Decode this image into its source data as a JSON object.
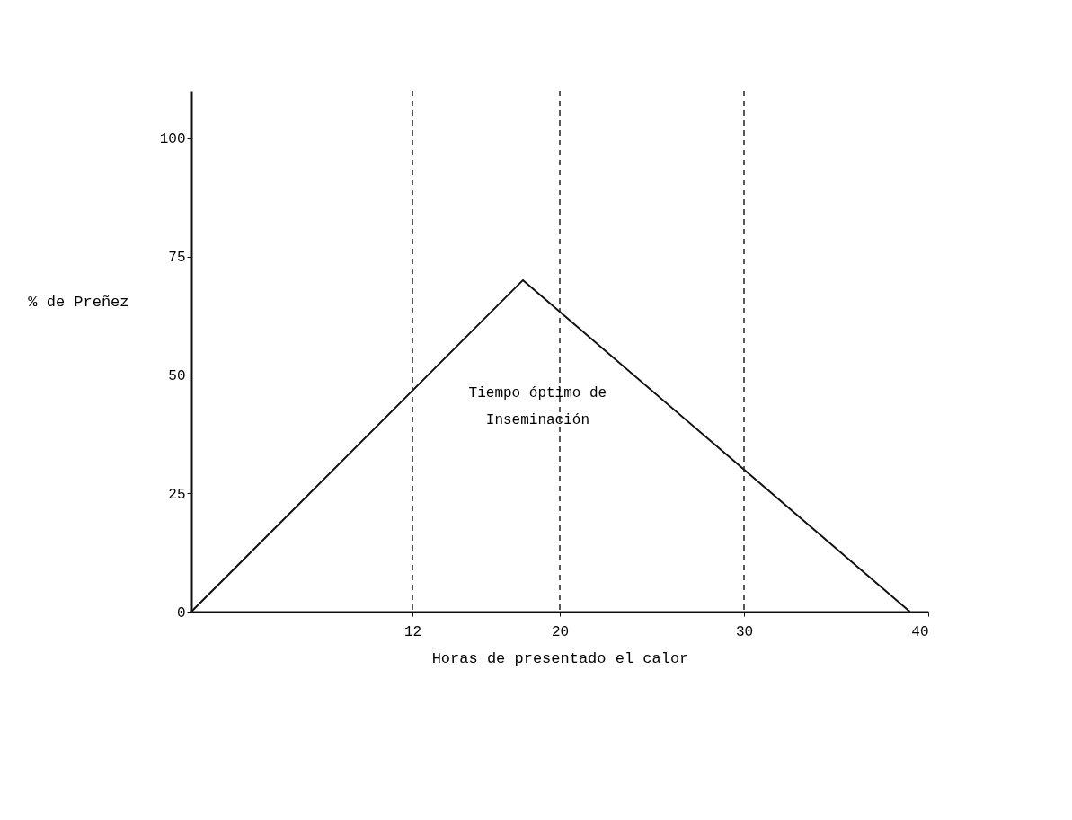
{
  "chart_data": {
    "type": "line",
    "xlabel": "Horas de presentado el calor",
    "ylabel": "% de Preñez",
    "x": [
      0,
      18,
      39
    ],
    "series": [
      {
        "color": "#111111",
        "values": [
          0,
          70,
          0
        ]
      }
    ],
    "xlim": [
      0,
      40
    ],
    "xticks": [
      12,
      20,
      30,
      40
    ],
    "ylim": [
      0,
      110
    ],
    "yticks": [
      0,
      25,
      50,
      75,
      100
    ],
    "grid": false,
    "marker": "none",
    "line_style": "solid",
    "ref_lines": [
      {
        "axis": "x",
        "value": 12,
        "line_style": "dashed",
        "color": "#222222"
      },
      {
        "axis": "x",
        "value": 20,
        "line_style": "dashed",
        "color": "#222222"
      },
      {
        "axis": "x",
        "value": 30,
        "line_style": "dashed",
        "color": "#222222"
      }
    ],
    "annotations": [
      "Tiempo óptimo de\nInseminación"
    ]
  }
}
